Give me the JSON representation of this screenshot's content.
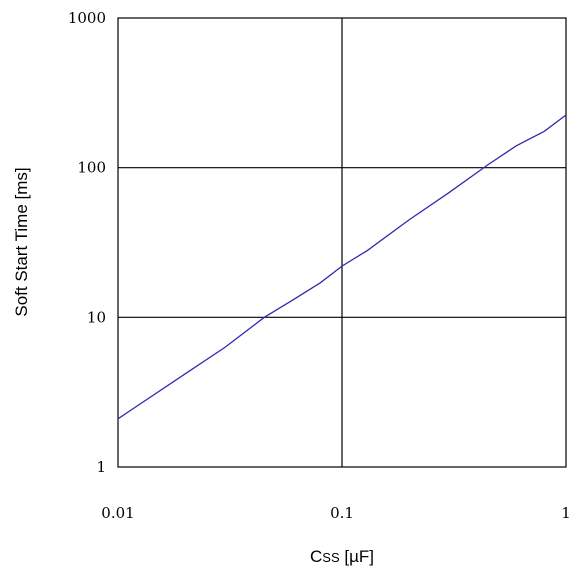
{
  "chart_data": {
    "type": "line",
    "title": "",
    "xlabel": "C",
    "xlabel_sub": "SS",
    "xlabel_unit": " [µF]",
    "ylabel": "Soft Start Time [ms]",
    "xscale": "log",
    "yscale": "log",
    "xlim": [
      0.01,
      1
    ],
    "ylim": [
      1,
      1000
    ],
    "grid": true,
    "x_ticks": [
      0.01,
      0.1,
      1
    ],
    "x_tick_labels": [
      "0.01",
      "0.1",
      "1"
    ],
    "y_ticks": [
      1,
      10,
      100,
      1000
    ],
    "y_tick_labels": [
      "1",
      "10",
      "100",
      "1000"
    ],
    "series_color": "#2b2bb0",
    "series": [
      {
        "x": [
          0.01,
          0.02,
          0.03,
          0.045,
          0.06,
          0.08,
          0.1,
          0.13,
          0.2,
          0.3,
          0.45,
          0.6,
          0.8,
          1.0
        ],
        "y": [
          2.1,
          4.2,
          6.3,
          10,
          13,
          17,
          22,
          28,
          45,
          68,
          105,
          140,
          175,
          225
        ]
      }
    ]
  }
}
